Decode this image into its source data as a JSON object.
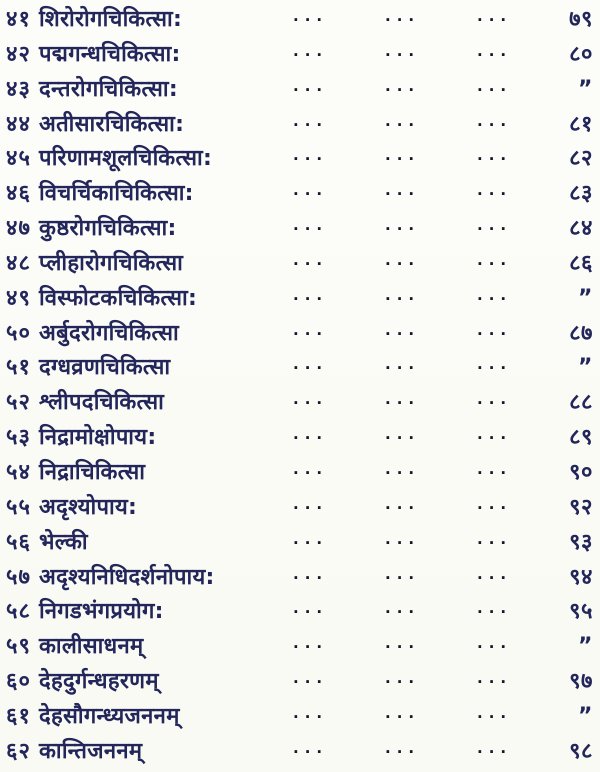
{
  "document": {
    "type": "scanned-book-toc-page",
    "script": "Devanagari",
    "leader_dots": "...",
    "ditto_mark": "”",
    "colors": {
      "ink": "#23265a",
      "dots": "#17172c",
      "background": "#fbfbf7"
    }
  },
  "toc": {
    "rows": [
      {
        "num": "४१",
        "title": "शिरोरोगचिकित्सा:",
        "page": "७९"
      },
      {
        "num": "४२",
        "title": "पद्मगन्धचिकित्सा:",
        "page": "८०"
      },
      {
        "num": "४३",
        "title": "दन्तरोगचिकित्सा:",
        "page": "”"
      },
      {
        "num": "४४",
        "title": "अतीसारचिकित्सा:",
        "page": "८१"
      },
      {
        "num": "४५",
        "title": "परिणामशूलचिकित्सा:",
        "page": "८२"
      },
      {
        "num": "४६",
        "title": "विचर्चिकाचिकित्सा:",
        "page": "८३"
      },
      {
        "num": "४७",
        "title": "कुष्ठरोगचिकित्सा:",
        "page": "८४"
      },
      {
        "num": "४८",
        "title": "प्लीहारोगचिकित्सा",
        "page": "८६"
      },
      {
        "num": "४९",
        "title": "विस्फोटकचिकित्सा:",
        "page": "”"
      },
      {
        "num": "५०",
        "title": "अर्बुदरोगचिकित्सा",
        "page": "८७"
      },
      {
        "num": "५१",
        "title": "दग्धव्रणचिकित्सा",
        "page": "”"
      },
      {
        "num": "५२",
        "title": "श्लीपदचिकित्सा",
        "page": "८८"
      },
      {
        "num": "५३",
        "title": "निद्रामोक्षोपाय:",
        "page": "८९"
      },
      {
        "num": "५४",
        "title": "निद्राचिकित्सा",
        "page": "९०"
      },
      {
        "num": "५५",
        "title": "अदृश्योपाय:",
        "page": "९२"
      },
      {
        "num": "५६",
        "title": "भेल्की",
        "page": "९३"
      },
      {
        "num": "५७",
        "title": "अदृश्यनिधिदर्शनोपाय:",
        "page": "९४"
      },
      {
        "num": "५८",
        "title": "निगडभंगप्रयोग:",
        "page": "९५"
      },
      {
        "num": "५९",
        "title": "कालीसाधनम्",
        "page": "”"
      },
      {
        "num": "६०",
        "title": "देहदुर्गन्धहरणम्",
        "page": "९७"
      },
      {
        "num": "६१",
        "title": "देहसौगन्ध्यजननम्",
        "page": "”"
      },
      {
        "num": "६२",
        "title": "कान्तिजननम्",
        "page": "९८"
      }
    ]
  }
}
